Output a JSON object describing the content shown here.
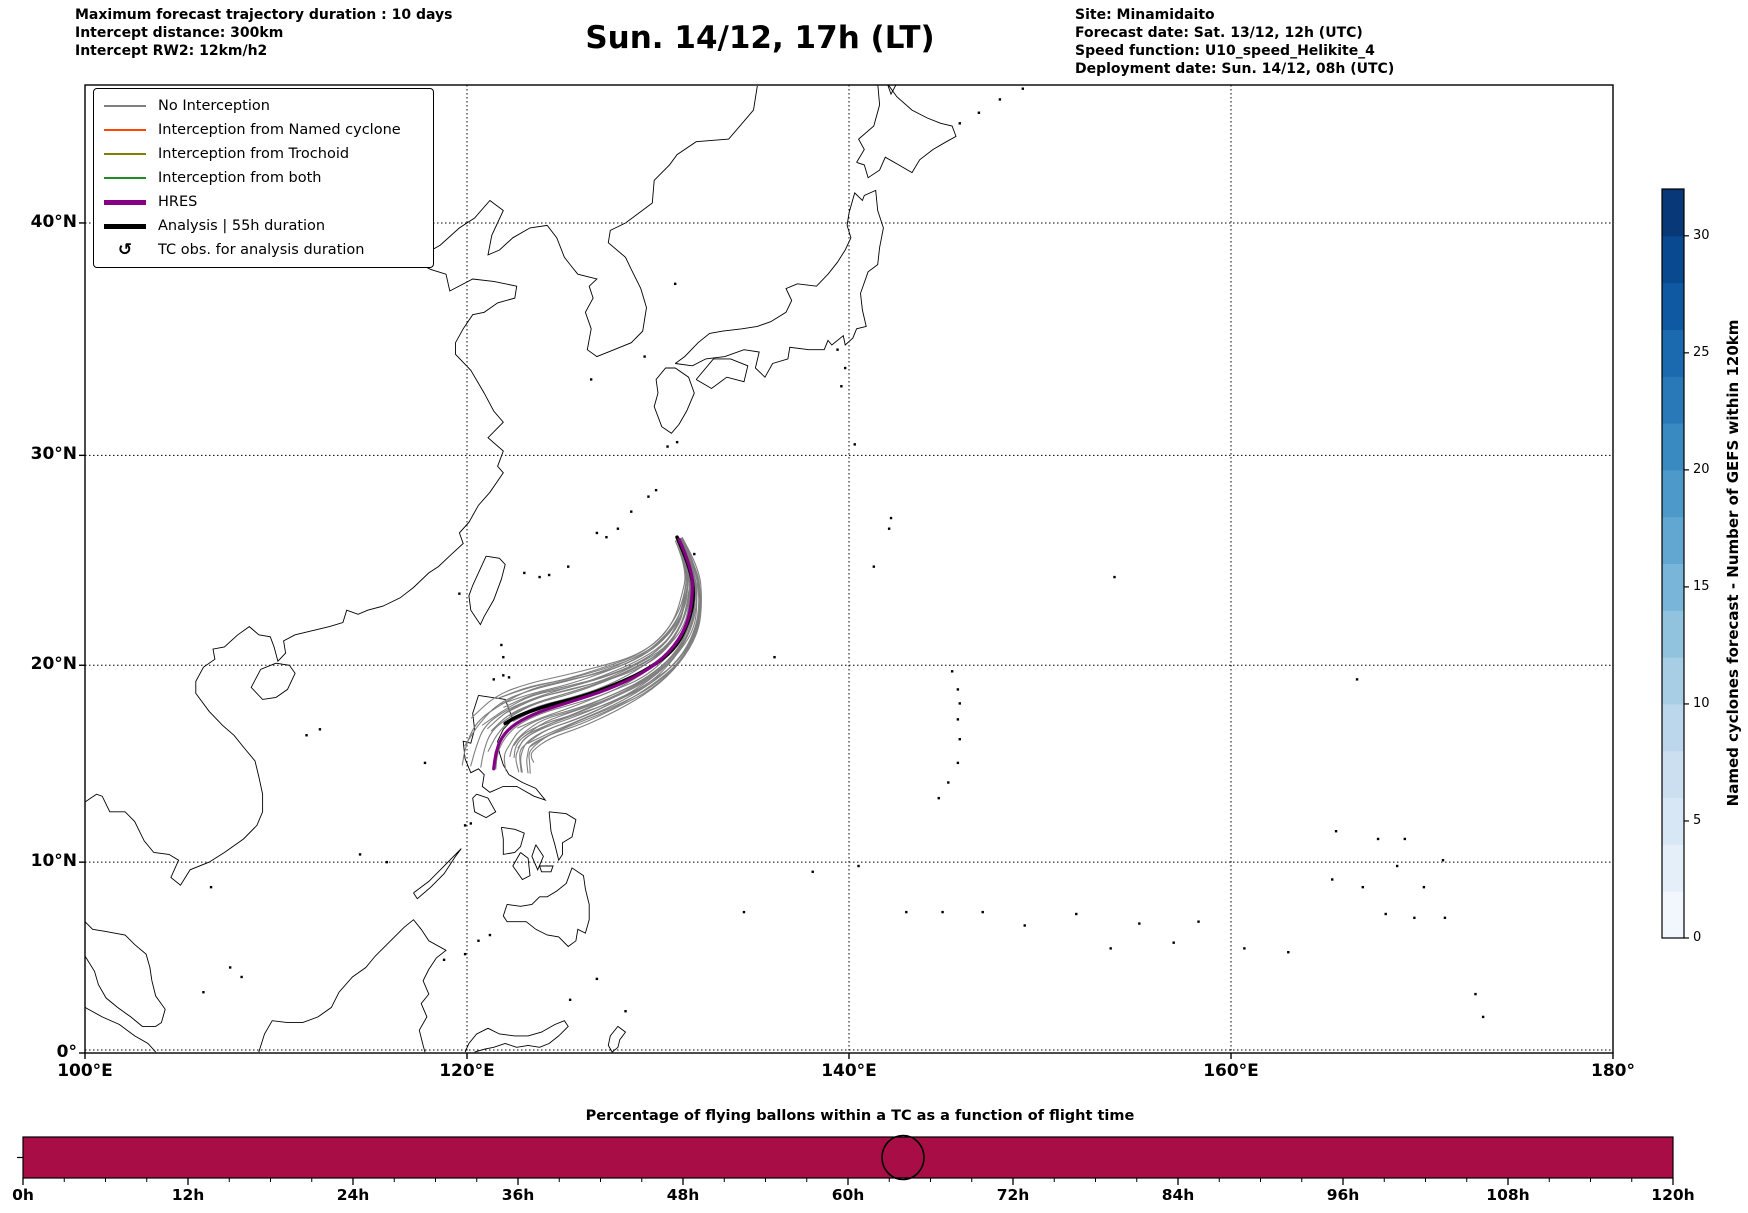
{
  "header": {
    "left_lines": [
      "Maximum forecast trajectory duration : 10 days",
      "Intercept distance: 300km",
      "Intercept RW2: 12km/h2"
    ],
    "title": "Sun. 14/12, 17h (LT)",
    "right_lines": [
      "Site: Minamidaito",
      "Forecast date: Sat. 13/12, 12h (UTC)",
      "Speed function: U10_speed_Helikite_4",
      "Deployment date: Sun. 14/12, 08h (UTC)"
    ]
  },
  "legend": {
    "items": [
      {
        "label": "No Interception",
        "color": "#808080",
        "style": "thin"
      },
      {
        "label": "Interception from Named cyclone",
        "color": "#FF4500",
        "style": "thin"
      },
      {
        "label": "Interception from Trochoid",
        "color": "#808000",
        "style": "thin"
      },
      {
        "label": "Interception from both",
        "color": "#228B22",
        "style": "thin"
      },
      {
        "label": "HRES",
        "color": "#860086",
        "style": "thick"
      },
      {
        "label": "Analysis | 55h duration",
        "color": "#000000",
        "style": "thick"
      },
      {
        "label": "TC obs. for analysis duration",
        "color": "#000000",
        "style": "symbol",
        "symbol": "↺"
      }
    ]
  },
  "map_axes": {
    "x_tick_labels": [
      "100°E",
      "120°E",
      "140°E",
      "160°E",
      "180°"
    ],
    "x_tick_lons": [
      100,
      120,
      140,
      160,
      180
    ],
    "y_tick_labels": [
      "0°",
      "10°N",
      "20°N",
      "30°N",
      "40°N"
    ],
    "y_tick_lats": [
      0,
      10,
      20,
      30,
      40
    ],
    "grid_lons": [
      120,
      140,
      160
    ],
    "grid_lats": [
      0,
      10,
      20,
      30,
      40
    ],
    "lon_range": [
      100,
      180
    ],
    "lat_range": [
      0,
      45.3
    ],
    "projection": "Mercator"
  },
  "colorbar": {
    "label": "Named cyclones forecast - Number of GEFS within 120km",
    "tick_values": [
      0,
      5,
      10,
      15,
      20,
      25,
      30
    ],
    "vmin": 0,
    "vmax": 32,
    "bins": 16,
    "colormap": "Blues"
  },
  "bottom_chart": {
    "title": "Percentage of flying ballons within a TC as a function of flight time",
    "tick_labels": [
      "0h",
      "12h",
      "24h",
      "36h",
      "48h",
      "60h",
      "72h",
      "84h",
      "96h",
      "108h",
      "120h"
    ],
    "tick_hours": [
      0,
      12,
      24,
      36,
      48,
      60,
      72,
      84,
      96,
      108,
      120
    ],
    "minor_tick_step_hours": 3,
    "x_max_hour": 120,
    "bar_color": "#A80D45",
    "bar_value_percent": 100,
    "highlight_circle_hour": 64
  },
  "chart_data": {
    "type": "line",
    "title": "Sun. 14/12, 17h (LT)",
    "deployment_site": {
      "name": "Minamidaito",
      "lon": 131.2,
      "lat": 25.8
    },
    "lon_range": [
      100,
      180
    ],
    "lat_range": [
      0,
      45.3
    ],
    "series": [
      {
        "name": "Analysis | 55h duration",
        "color": "#000000",
        "linewidth": 3.6,
        "points": [
          [
            131.0,
            26.2
          ],
          [
            131.7,
            24.8
          ],
          [
            131.9,
            23.3
          ],
          [
            131.6,
            22.1
          ],
          [
            130.9,
            20.8
          ],
          [
            129.5,
            19.8
          ],
          [
            127.7,
            19.0
          ],
          [
            125.9,
            18.4
          ],
          [
            124.2,
            18.0
          ],
          [
            122.7,
            17.5
          ],
          [
            122.0,
            17.1
          ]
        ]
      },
      {
        "name": "HRES",
        "color": "#860086",
        "linewidth": 3.2,
        "points": [
          [
            131.1,
            26.1
          ],
          [
            131.8,
            24.7
          ],
          [
            131.8,
            23.2
          ],
          [
            131.5,
            21.9
          ],
          [
            130.6,
            20.6
          ],
          [
            129.2,
            19.6
          ],
          [
            127.4,
            18.8
          ],
          [
            125.5,
            18.2
          ],
          [
            123.8,
            17.7
          ],
          [
            122.5,
            17.1
          ],
          [
            121.8,
            16.4
          ],
          [
            121.5,
            15.6
          ],
          [
            121.4,
            14.8
          ]
        ]
      },
      {
        "name": "GEFS ensemble (No Interception)",
        "color": "#7f7f7f",
        "linewidth": 1.1,
        "count": 32,
        "note": "Fan of gray ensemble trajectories from Minamidaito (131.2E, 25.8N) southwest to east of Luzon (121.5-123E, 15-18N)"
      }
    ]
  }
}
